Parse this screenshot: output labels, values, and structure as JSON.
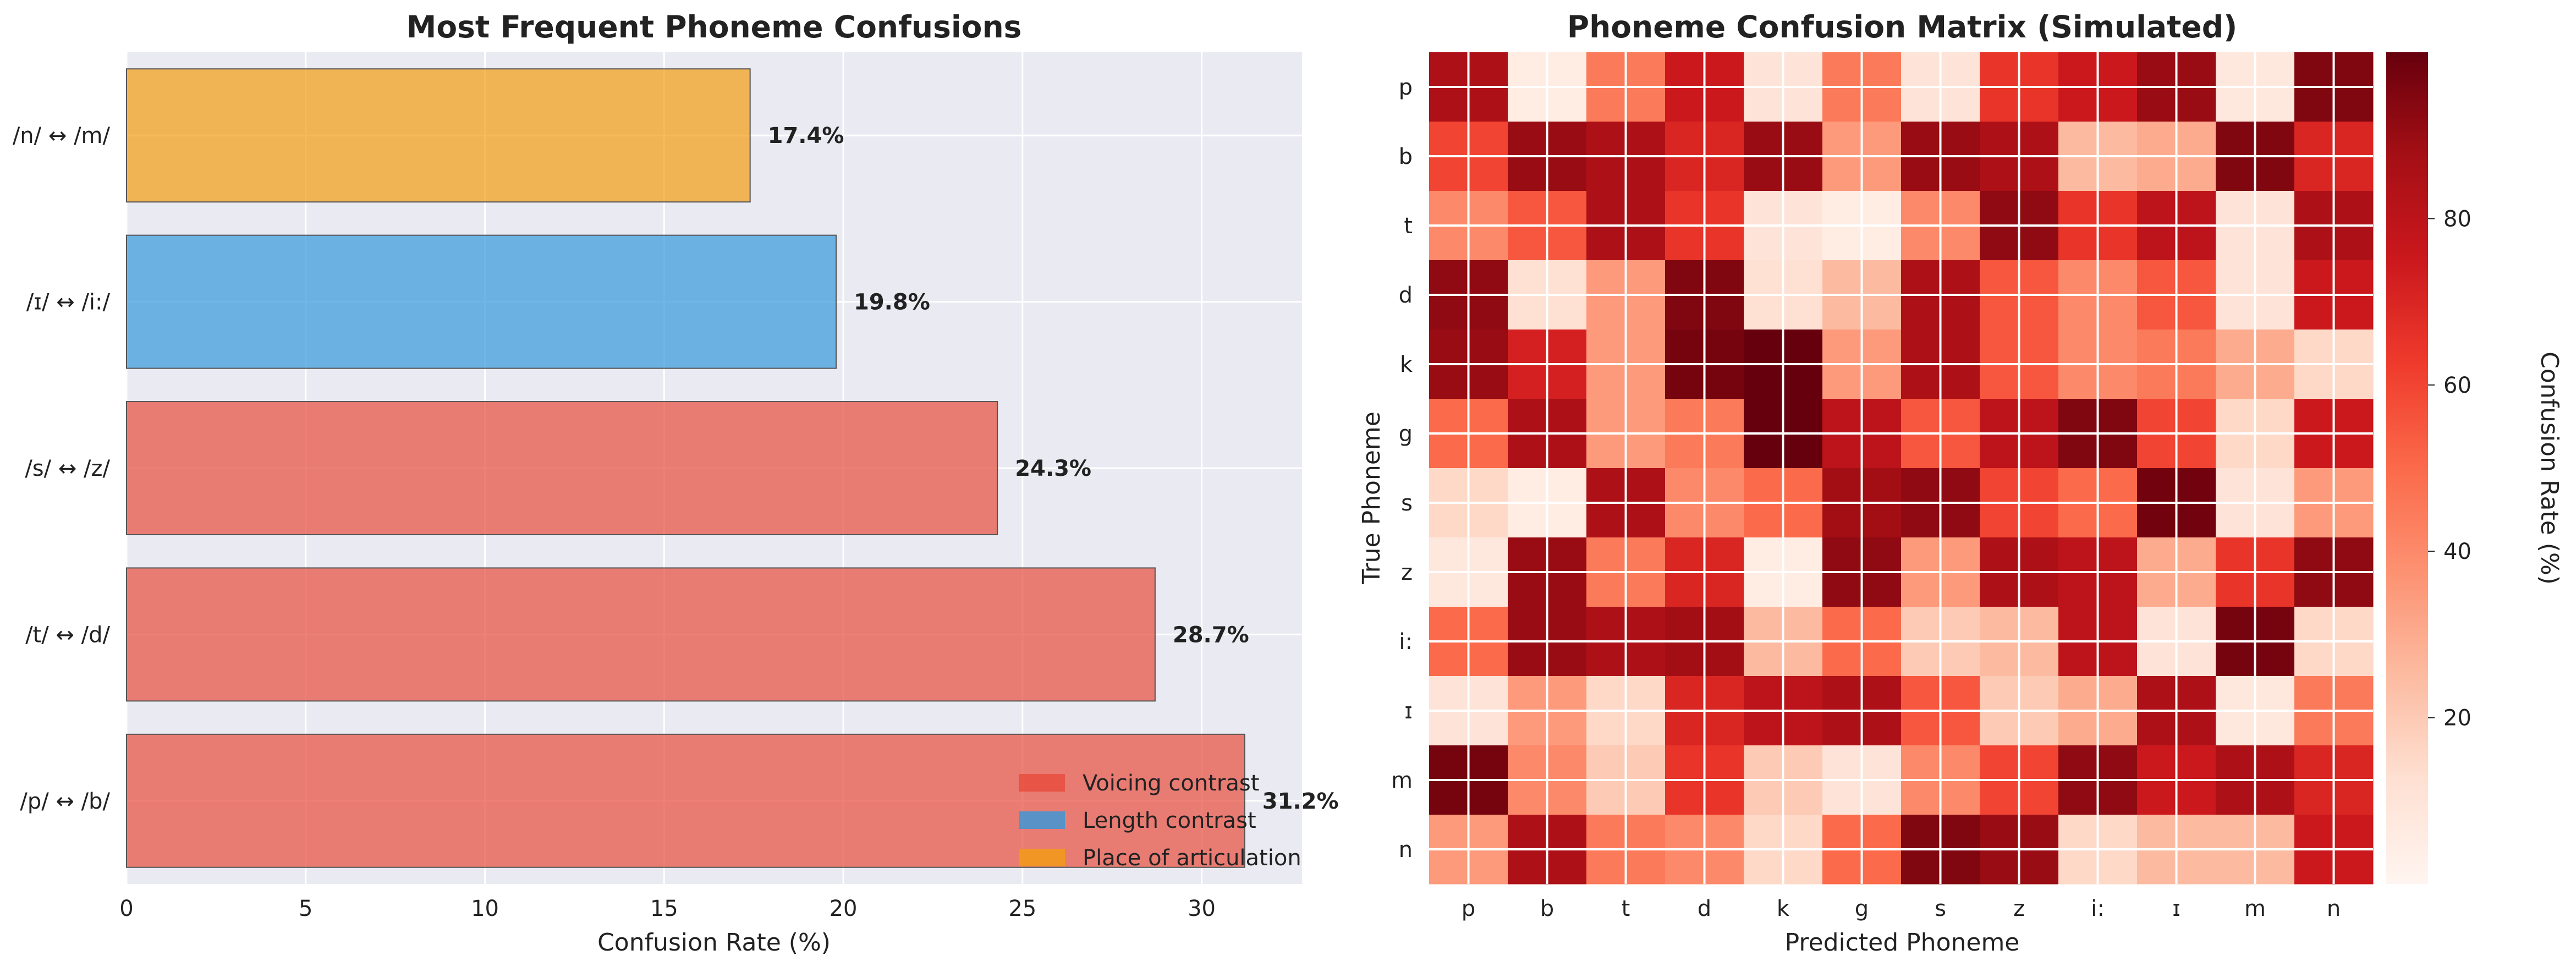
{
  "chart_data": [
    {
      "type": "bar",
      "orientation": "horizontal",
      "title": "Most Frequent Phoneme Confusions",
      "xlabel": "Confusion Rate (%)",
      "ylabel": "",
      "xlim": [
        0,
        32.8
      ],
      "xticks": [
        0,
        5,
        10,
        15,
        20,
        25,
        30
      ],
      "grid": true,
      "categories": [
        "/p/ ↔ /b/",
        "/t/ ↔ /d/",
        "/s/ ↔ /z/",
        "/ɪ/ ↔ /i:/",
        "/n/ ↔ /m/"
      ],
      "values": [
        31.2,
        28.7,
        24.3,
        19.8,
        17.4
      ],
      "value_labels": [
        "31.2%",
        "28.7%",
        "24.3%",
        "19.8%",
        "17.4%"
      ],
      "bar_groups": [
        "Voicing contrast",
        "Voicing contrast",
        "Voicing contrast",
        "Length contrast",
        "Place of articulation"
      ],
      "legend": {
        "placement": "lower-right",
        "entries": [
          {
            "label": "Voicing contrast",
            "color": "#e74c3c"
          },
          {
            "label": "Length contrast",
            "color": "#3498db"
          },
          {
            "label": "Place of articulation",
            "color": "#f39c12"
          }
        ]
      },
      "colors": {
        "Voicing contrast": "#e74c3c",
        "Length contrast": "#3498db",
        "Place of articulation": "#f39c12"
      }
    },
    {
      "type": "heatmap",
      "title": "Phoneme Confusion Matrix (Simulated)",
      "xlabel": "Predicted Phoneme",
      "ylabel": "True Phoneme",
      "x_categories": [
        "p",
        "b",
        "t",
        "d",
        "k",
        "g",
        "s",
        "z",
        "i:",
        "ɪ",
        "m",
        "n"
      ],
      "y_categories": [
        "p",
        "b",
        "t",
        "d",
        "k",
        "g",
        "s",
        "z",
        "i:",
        "ɪ",
        "m",
        "n"
      ],
      "colormap": "Reds",
      "vmin": 0,
      "vmax": 100,
      "colorbar_label": "Confusion Rate (%)",
      "colorbar_ticks": [
        20,
        40,
        60,
        80
      ],
      "values": [
        [
          85,
          5,
          45,
          75,
          10,
          45,
          10,
          65,
          75,
          90,
          8,
          95
        ],
        [
          60,
          90,
          85,
          70,
          90,
          35,
          90,
          85,
          25,
          30,
          95,
          70
        ],
        [
          40,
          55,
          85,
          65,
          10,
          5,
          40,
          92,
          65,
          80,
          10,
          85
        ],
        [
          92,
          12,
          35,
          95,
          12,
          25,
          85,
          55,
          40,
          55,
          10,
          75
        ],
        [
          90,
          72,
          35,
          97,
          100,
          35,
          85,
          55,
          40,
          45,
          30,
          15
        ],
        [
          50,
          85,
          35,
          45,
          100,
          80,
          55,
          80,
          95,
          60,
          15,
          75
        ],
        [
          15,
          5,
          85,
          40,
          50,
          88,
          92,
          60,
          50,
          98,
          10,
          35
        ],
        [
          8,
          90,
          45,
          70,
          5,
          92,
          35,
          85,
          80,
          30,
          65,
          92
        ],
        [
          50,
          90,
          85,
          88,
          25,
          50,
          20,
          25,
          80,
          10,
          97,
          15
        ],
        [
          10,
          35,
          15,
          70,
          80,
          85,
          55,
          20,
          30,
          85,
          8,
          45
        ],
        [
          97,
          40,
          20,
          65,
          20,
          10,
          40,
          60,
          92,
          75,
          85,
          70
        ],
        [
          35,
          85,
          45,
          40,
          15,
          50,
          95,
          90,
          15,
          25,
          25,
          75
        ]
      ]
    }
  ]
}
